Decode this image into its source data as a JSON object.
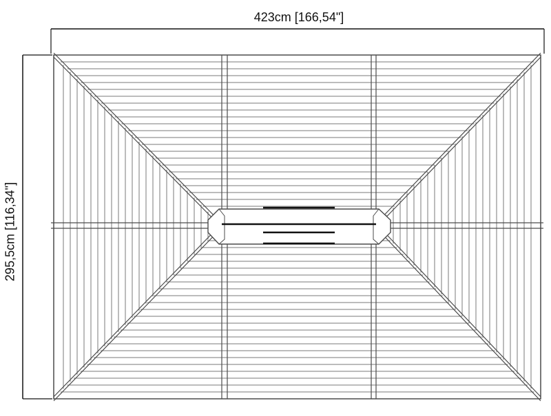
{
  "dimensions": {
    "width_label": "423cm [166,54\"]",
    "height_label": "295,5cm [116,34\"]"
  },
  "colors": {
    "outline": "#4a4a4a",
    "slat": "#7a7a7a",
    "dimension_line": "#111111",
    "vent_bar": "#111111",
    "background": "#ffffff"
  }
}
